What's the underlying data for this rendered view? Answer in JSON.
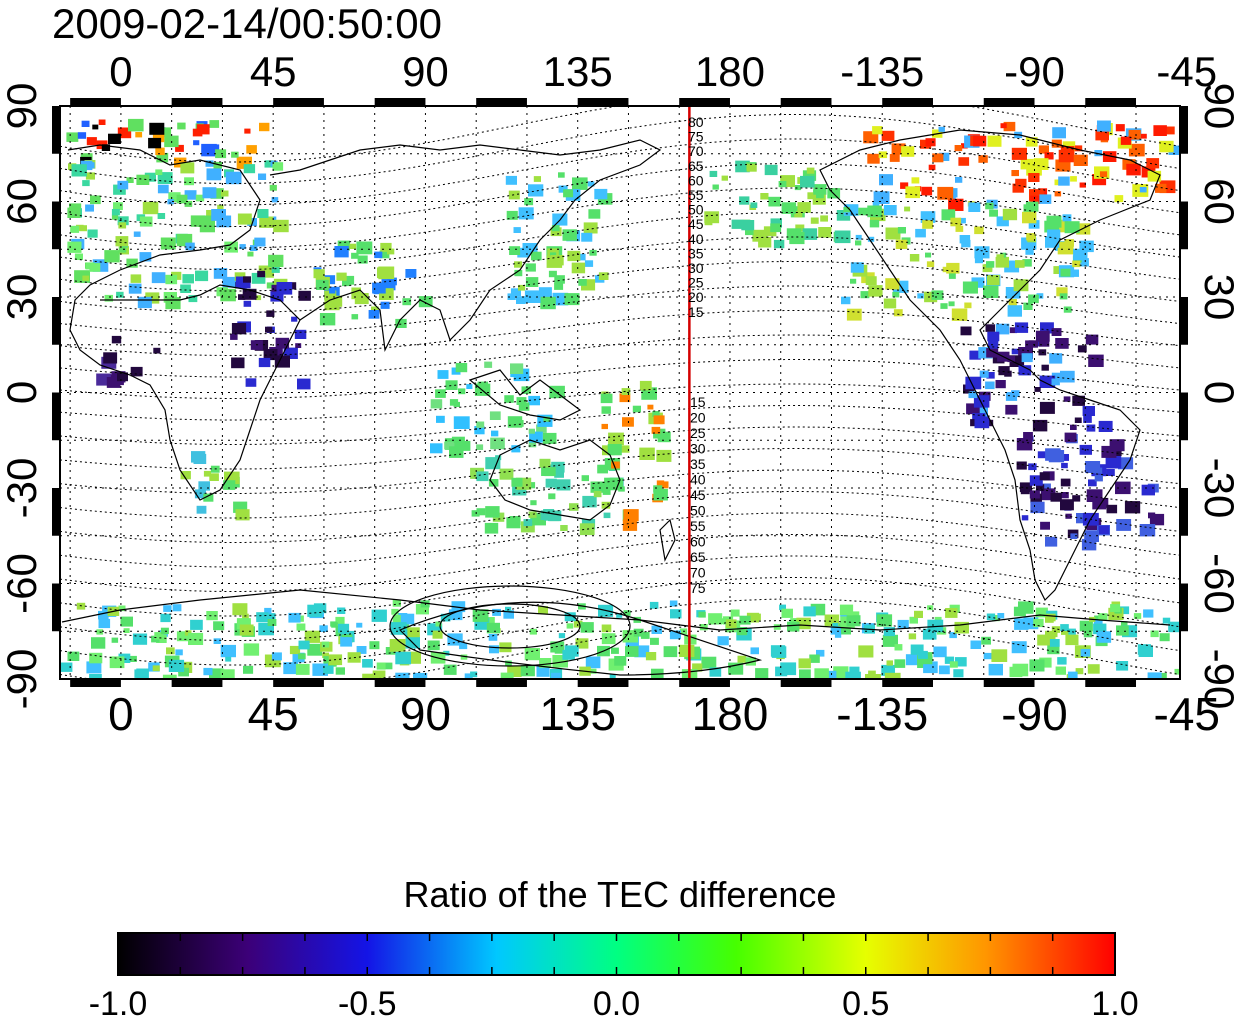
{
  "title": "2009-02-14/00:50:00",
  "map": {
    "lon_ticks_top": [
      "0",
      "45",
      "90",
      "135",
      "180",
      "-135",
      "-90",
      "-45"
    ],
    "lon_ticks_bottom": [
      "0",
      "45",
      "90",
      "135",
      "180",
      "-135",
      "-90",
      "-45"
    ],
    "lat_ticks_left": [
      "90",
      "60",
      "30",
      "0",
      "-30",
      "-60",
      "-90"
    ],
    "lat_ticks_right": [
      "90",
      "60",
      "30",
      "0",
      "-30",
      "-60",
      "-90"
    ],
    "lon_tick_values": [
      0,
      45,
      90,
      135,
      180,
      225,
      270,
      315
    ],
    "lat_tick_values": [
      90,
      60,
      30,
      0,
      -30,
      -60,
      -90
    ],
    "lon_range": [
      -18,
      313
    ],
    "lat_range": [
      -90,
      90
    ],
    "terminator_lon": 168,
    "terminator_color": "#d40000",
    "contour_labels_north": [
      "80",
      "75",
      "70",
      "65",
      "60",
      "55",
      "50",
      "45",
      "40",
      "35",
      "30",
      "25",
      "20",
      "15"
    ],
    "contour_labels_south": [
      "15",
      "20",
      "25",
      "30",
      "35",
      "40",
      "45",
      "50",
      "55",
      "60",
      "65",
      "70",
      "75"
    ]
  },
  "colorbar": {
    "title": "Ratio of the TEC difference",
    "min": -1.0,
    "max": 1.0,
    "labels": [
      "-1.0",
      "-0.5",
      "0.0",
      "0.5",
      "1.0"
    ],
    "label_values": [
      -1.0,
      -0.5,
      0.0,
      0.5,
      1.0
    ],
    "stops": [
      "#000000",
      "#3c0078",
      "#1414e6",
      "#00c8ff",
      "#00ff82",
      "#46ff00",
      "#e6ff00",
      "#ff9600",
      "#ff0000"
    ]
  },
  "colors": {
    "negative_strong": "#2a0a5e",
    "negative_mid": "#3a4fd8",
    "neutral": "#55e06a",
    "positive_mid": "#c8e632",
    "positive_strong": "#ff1a00"
  }
}
